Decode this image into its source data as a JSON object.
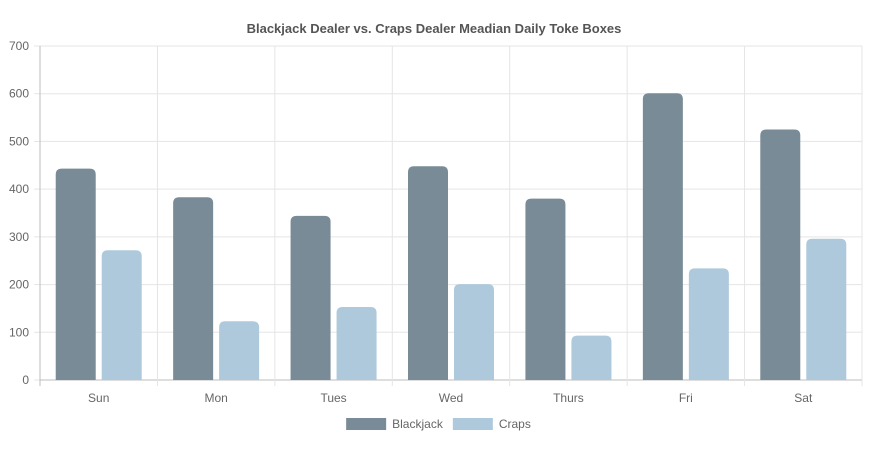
{
  "chart_data": {
    "type": "bar",
    "title": "Blackjack Dealer vs. Craps Dealer Meadian Daily Toke Boxes",
    "categories": [
      "Sun",
      "Mon",
      "Tues",
      "Wed",
      "Thurs",
      "Fri",
      "Sat"
    ],
    "series": [
      {
        "name": "Blackjack",
        "color": "#798b97",
        "values": [
          443,
          383,
          344,
          448,
          380,
          601,
          525
        ]
      },
      {
        "name": "Craps",
        "color": "#aec9dc",
        "values": [
          272,
          123,
          153,
          201,
          93,
          234,
          296
        ]
      }
    ],
    "ylim": [
      0,
      700
    ],
    "yticks": [
      0,
      100,
      200,
      300,
      400,
      500,
      600,
      700
    ],
    "grid": true,
    "legend_position": "bottom"
  }
}
